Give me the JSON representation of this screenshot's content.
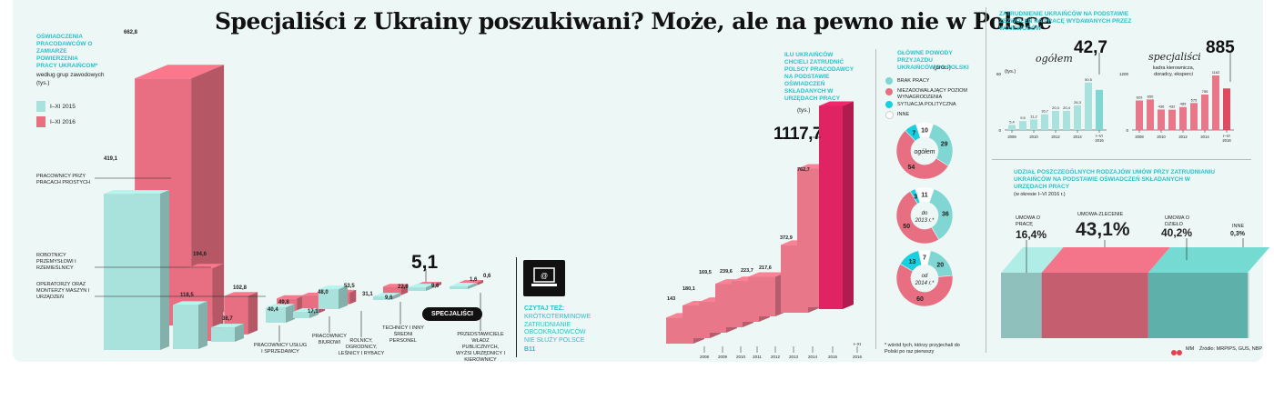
{
  "title": "Specjaliści z Ukrainy poszukiwani? Może,  ale na pewno nie w Polsce",
  "left_chart": {
    "heading": "OŚWIADCZENIA PRACODAWCÓW O ZAMIARZE POWIERZENIA PRACY UKRAIŃCOM*",
    "subheading": "według grup zawodowych",
    "unit": "(tys.)",
    "legend": [
      "I–XI 2015",
      "I–XI 2016"
    ],
    "colors": {
      "y2015": "#a9e2dc",
      "y2016": "#e86f82"
    },
    "callout_value": "5,1",
    "callout_badge": "SPECJALIŚCI",
    "chart_data": {
      "type": "bar",
      "categories": [
        "PRACOWNICY PRZY PRACACH PROSTYCH",
        "ROBOTNICY PRZEMYSŁOWI I RZEMIEŚLNICY",
        "OPERATORZY ORAZ MONTERZY MASZYN I URZĄDZEŃ",
        "PRACOWNICY USŁUG I SPRZEDAWCY",
        "PRACOWNICY BIUROWI",
        "ROLNICY, OGRODNICY, LEŚNICY I RYBACY",
        "TECHNICY I INNY ŚREDNI PERSONEL",
        "SPECJALIŚCI",
        "PRZEDSTAWICIELE WŁADZ PUBLICZNYCH, WYŻSI URZĘDNICY I KIEROWNICY"
      ],
      "series": [
        {
          "name": "I–XI 2015",
          "values": [
            419.1,
            118.5,
            38.7,
            40.4,
            17.1,
            53.5,
            9.6,
            9.6,
            1.6
          ],
          "labels": [
            "419,1",
            "118,5",
            "38,7",
            "40,4",
            "17,1",
            "53,5",
            "9,6",
            "9,6",
            "1,6"
          ]
        },
        {
          "name": "I–XI 2016",
          "values": [
            662.8,
            194.6,
            102.8,
            49.8,
            48.0,
            31.1,
            22.9,
            5.1,
            0.6
          ],
          "labels": [
            "662,8",
            "194,6",
            "102,8",
            "49,8",
            "48,0",
            "31,1",
            "22,9",
            "",
            "0,6"
          ]
        }
      ]
    }
  },
  "read_more": {
    "label": "CZYTAJ TEŻ:",
    "text": "KRÓTKOTERMINOWE ZATRUDNIANIE OBCOKRAJOWCÓW NIE SŁUŻY POLSCE",
    "page": "B11"
  },
  "mid_chart": {
    "heading": "ILU UKRAIŃCÓW CHCIELI ZATRUDNIĆ POLSCY PRACODAWCY NA PODSTAWIE OŚWIADCZEŃ SKŁADANYCH W URZĘDACH PRACY",
    "unit": "(tys.)",
    "big_value": "1117,7",
    "chart_data": {
      "type": "bar",
      "categories": [
        "2008",
        "2009",
        "2010",
        "2011",
        "2012",
        "2013",
        "2014",
        "2015",
        "I–XI 2016"
      ],
      "values": [
        143,
        180.1,
        169.5,
        239.6,
        223.7,
        217.6,
        372.9,
        762.7,
        1117.7
      ],
      "labels": [
        "143",
        "180,1",
        "169,5",
        "239,6",
        "223,7",
        "217,6",
        "372,9",
        "762,7",
        "1117,7"
      ]
    }
  },
  "reasons": {
    "heading": "GŁÓWNE POWODY PRZYJAZDU UKRAIŃCÓW DO POLSKI",
    "unit": "(proc.)",
    "legend": [
      "BRAK PRACY",
      "NIEZADOWALAJĄCY POZIOM WYNAGRODZENIA",
      "SYTUACJA POLITYCZNA",
      "INNE"
    ],
    "colors": {
      "brak": "#7fd6d2",
      "niezad": "#e86f82",
      "polit": "#18d0df",
      "inne": "#ffffff"
    },
    "footnote": "* wśród tych, którzy przyjechali do Polski po raz pierwszy",
    "chart_data": [
      {
        "type": "pie",
        "label": "ogółem",
        "values": [
          29,
          54,
          7,
          10
        ],
        "labels": [
          "29",
          "54",
          "7",
          "10"
        ]
      },
      {
        "type": "pie",
        "label": "do 2013 r.*",
        "values": [
          36,
          50,
          3,
          11
        ],
        "labels": [
          "36",
          "50",
          "3",
          "11"
        ]
      },
      {
        "type": "pie",
        "label": "od 2014 r.*",
        "values": [
          20,
          60,
          13,
          7
        ],
        "labels": [
          "20",
          "60",
          "13",
          "7"
        ]
      }
    ]
  },
  "permits": {
    "heading": "ZATRUDNIENIE UKRAIŃCÓW NA PODSTAWIE ZEZWOLEŃ NA PRACĘ WYDAWANYCH PRZEZ WOJEWODÓW",
    "unit": "(tys.)",
    "left_label": "ogółem",
    "left_big": "42,7",
    "right_label": "specjaliści",
    "right_sub": "kadra kierownicza, doradcy, eksperci",
    "right_big": "885",
    "x_ticks": [
      "2008",
      "2010",
      "2012",
      "2014",
      "I–VI 2016"
    ],
    "chart_data": [
      {
        "type": "bar",
        "name": "ogółem",
        "ylim": [
          0,
          60
        ],
        "y_ticks": [
          "0",
          "60"
        ],
        "categories": [
          "2008",
          "2009",
          "2010",
          "2011",
          "2012",
          "2013",
          "2014",
          "2015",
          "I–VI 2016"
        ],
        "values": [
          5.4,
          9.5,
          11.2,
          16.7,
          20.3,
          20.4,
          26.3,
          50.5,
          42.7
        ],
        "labels": [
          "5,4",
          "9,5",
          "11,2",
          "16,7",
          "20,3",
          "20,4",
          "26,3",
          "50,5",
          ""
        ]
      },
      {
        "type": "bar",
        "name": "specjaliści",
        "ylim": [
          0,
          1200
        ],
        "y_ticks": [
          "0",
          "1200"
        ],
        "categories": [
          "2008",
          "2009",
          "2010",
          "2011",
          "2012",
          "2013",
          "2014",
          "2015",
          "I–VI 2016"
        ],
        "values": [
          629,
          650,
          436,
          432,
          489,
          575,
          755,
          1162,
          885
        ],
        "labels": [
          "629",
          "650",
          "436",
          "432",
          "489",
          "575",
          "755",
          "1162",
          ""
        ]
      }
    ]
  },
  "contracts": {
    "heading": "UDZIAŁ POSZCZEGÓLNYCH RODZAJÓW UMÓW PRZY ZATRUDNIANIU UKRAIŃCÓW NA PODSTAWIE OŚWIADCZEŃ SKŁADANYCH W URZĘDACH PRACY",
    "period": "(w okresie I–VI 2016 r.)",
    "colors": [
      "#a9e2dc",
      "#e86f82",
      "#6fd0c8",
      "#e5f1ef"
    ],
    "chart_data": {
      "type": "bar",
      "categories": [
        "UMOWA O PRACĘ",
        "UMOWA-ZLECENIE",
        "UMOWA O DZIEŁO",
        "INNE"
      ],
      "values": [
        16.4,
        43.1,
        40.2,
        0.3
      ],
      "labels": [
        "16,4%",
        "43,1%",
        "40,2%",
        "0,3%"
      ]
    }
  },
  "credits": {
    "logo": "GW",
    "author": "MM",
    "source": "Źródło: MRPIPS, GUS, NBP"
  }
}
